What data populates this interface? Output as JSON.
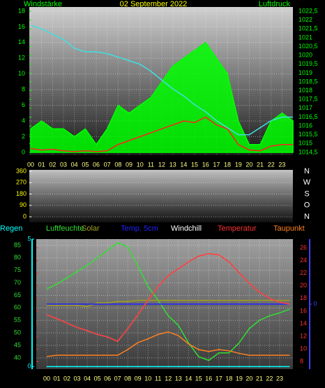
{
  "chart_data": [
    {
      "type": "line",
      "title": "02 September 2022",
      "ylabel": "Windstärke",
      "y2label": "Luftdruck",
      "x": [
        0,
        1,
        2,
        3,
        4,
        5,
        6,
        7,
        8,
        9,
        10,
        11,
        12,
        13,
        14,
        15,
        16,
        17,
        18,
        19,
        20,
        21,
        22,
        23,
        24
      ],
      "xticks": [
        {
          "value": 0,
          "label": "00"
        },
        {
          "value": 1,
          "label": "01"
        },
        {
          "value": 2,
          "label": "02"
        },
        {
          "value": 3,
          "label": "03"
        },
        {
          "value": 4,
          "label": "04"
        },
        {
          "value": 5,
          "label": "05"
        },
        {
          "value": 6,
          "label": "06"
        },
        {
          "value": 7,
          "label": "07"
        },
        {
          "value": 8,
          "label": "08"
        },
        {
          "value": 9,
          "label": "09"
        },
        {
          "value": 10,
          "label": "10"
        },
        {
          "value": 11,
          "label": "11"
        },
        {
          "value": 12,
          "label": "12"
        },
        {
          "value": 13,
          "label": "13"
        },
        {
          "value": 14,
          "label": "14"
        },
        {
          "value": 15,
          "label": "15"
        },
        {
          "value": 16,
          "label": "16"
        },
        {
          "value": 17,
          "label": "17"
        },
        {
          "value": 18,
          "label": "18"
        },
        {
          "value": 19,
          "label": "19"
        },
        {
          "value": 20,
          "label": "20"
        },
        {
          "value": 21,
          "label": "21"
        },
        {
          "value": 22,
          "label": "22"
        },
        {
          "value": 23,
          "label": "23"
        }
      ],
      "ylim": [
        -0.36,
        18.53
      ],
      "yticks": [
        0,
        2,
        4,
        6,
        8,
        10,
        12,
        14,
        16,
        18
      ],
      "y2lim": [
        1014.34,
        1022.74
      ],
      "y2ticks": [
        {
          "value": 1014.5,
          "label": "1014,5"
        },
        1015,
        {
          "value": 1015.5,
          "label": "1015,5"
        },
        1016,
        {
          "value": 1016.5,
          "label": "1016,5"
        },
        1017,
        {
          "value": 1017.5,
          "label": "1017,5"
        },
        1018,
        {
          "value": 1018.5,
          "label": "1018,5"
        },
        1019,
        {
          "value": 1019.5,
          "label": "1019,5"
        },
        1020,
        {
          "value": 1020.5,
          "label": "1020,5"
        },
        1021,
        {
          "value": 1021.5,
          "label": "1021,5"
        },
        1022,
        {
          "value": 1022.5,
          "label": "1022,5"
        }
      ],
      "grid": true,
      "series": [
        {
          "color": "#00ff00",
          "fill": true,
          "values": [
            3,
            4,
            3,
            3,
            2,
            3,
            1,
            3,
            6,
            5,
            6,
            7,
            9,
            11,
            12,
            13,
            14,
            12,
            10,
            4,
            1,
            1,
            4,
            5,
            4
          ]
        },
        {
          "color": "#ff2020",
          "values": [
            0.5,
            0.3,
            0.4,
            0.2,
            0.1,
            0.2,
            0.1,
            0.2,
            1,
            1.5,
            2,
            2.5,
            3,
            3.5,
            4,
            3.8,
            4.5,
            3.5,
            3,
            1,
            0.3,
            0.2,
            0.8,
            1,
            1
          ]
        },
        {
          "color": "#40e0e0",
          "axis": "y2",
          "values": [
            1021.7,
            1021.5,
            1021.2,
            1020.9,
            1020.4,
            1020.2,
            1020.2,
            1020.1,
            1019.9,
            1019.7,
            1019.5,
            1019.1,
            1018.6,
            1018.1,
            1017.7,
            1017.2,
            1016.8,
            1016.3,
            1015.9,
            1015.5,
            1015.5,
            1015.9,
            1016.3,
            1016.5,
            1016.5
          ]
        }
      ]
    },
    {
      "type": "line",
      "ylim": [
        -44,
        371
      ],
      "yticks": [
        0,
        90,
        180,
        270,
        360
      ],
      "y2lim": [
        -44,
        371
      ],
      "y2ticks": [
        {
          "value": 360,
          "label": "N"
        },
        {
          "value": 270,
          "label": "W"
        },
        {
          "value": 180,
          "label": "S"
        },
        {
          "value": 90,
          "label": "O"
        },
        {
          "value": 0,
          "label": "N"
        }
      ],
      "grid": true,
      "series": []
    },
    {
      "type": "line",
      "x": [
        0,
        1,
        2,
        3,
        4,
        5,
        6,
        7,
        8,
        9,
        10,
        11,
        12,
        13,
        14,
        15,
        16,
        17,
        18,
        19,
        20,
        21,
        22,
        23,
        24
      ],
      "xticks": [
        {
          "value": 0,
          "label": "00"
        },
        {
          "value": 1,
          "label": "01"
        },
        {
          "value": 2,
          "label": "02"
        },
        {
          "value": 3,
          "label": "03"
        },
        {
          "value": 4,
          "label": "04"
        },
        {
          "value": 5,
          "label": "05"
        },
        {
          "value": 6,
          "label": "06"
        },
        {
          "value": 7,
          "label": "07"
        },
        {
          "value": 8,
          "label": "08"
        },
        {
          "value": 9,
          "label": "09"
        },
        {
          "value": 10,
          "label": "10"
        },
        {
          "value": 11,
          "label": "11"
        },
        {
          "value": 12,
          "label": "12"
        },
        {
          "value": 13,
          "label": "13"
        },
        {
          "value": 14,
          "label": "14"
        },
        {
          "value": 15,
          "label": "15"
        },
        {
          "value": 16,
          "label": "16"
        },
        {
          "value": 17,
          "label": "17"
        },
        {
          "value": 18,
          "label": "18"
        },
        {
          "value": 19,
          "label": "19"
        },
        {
          "value": 20,
          "label": "20"
        },
        {
          "value": 21,
          "label": "21"
        },
        {
          "value": 22,
          "label": "22"
        },
        {
          "value": 23,
          "label": "23"
        }
      ],
      "ylim": [
        35.5,
        87.5
      ],
      "yticks": [
        40,
        45,
        50,
        55,
        60,
        65,
        70,
        75,
        80,
        85
      ],
      "y2lim": [
        6.8,
        27.4
      ],
      "y2ticks": [
        8,
        10,
        12,
        14,
        16,
        18,
        20,
        22,
        24,
        26
      ],
      "y3lim": [
        -1,
        1
      ],
      "y3ticks": [
        0
      ],
      "y4lim": [
        -0.1,
        5
      ],
      "y4ticks": [
        0,
        5
      ],
      "grid": true,
      "series": [
        {
          "name": "Regen",
          "color": "#00ffff",
          "axis": "y4",
          "values": [
            0,
            0,
            0,
            0,
            0,
            0,
            0,
            0,
            0,
            0,
            0,
            0,
            0,
            0,
            0,
            0,
            0,
            0,
            0,
            0,
            0,
            0,
            0,
            0,
            0
          ]
        },
        {
          "name": "Luftfeuchte",
          "color": "#30e030",
          "values": [
            67.6,
            69.5,
            72,
            74.5,
            77,
            80,
            83,
            86,
            84.4,
            76.9,
            68.5,
            63,
            56.8,
            53,
            46,
            40.5,
            39,
            42,
            42,
            46,
            51.7,
            55,
            56.8,
            58,
            59.5
          ]
        },
        {
          "name": "Solar",
          "color": "#a0a020",
          "values": [
            61,
            61,
            61,
            61,
            60.5,
            62,
            62,
            62.5,
            62.5,
            63,
            63,
            63,
            63,
            63,
            63,
            63,
            63,
            63,
            63,
            63,
            63,
            63,
            63,
            63,
            63
          ]
        },
        {
          "name": "Temp. 5cm",
          "color": "#2020ff",
          "axis": "y3",
          "values": [
            0,
            0,
            0,
            0,
            0,
            0,
            0,
            0,
            0,
            0,
            0,
            0,
            0,
            0,
            0,
            0,
            0,
            0,
            0,
            0,
            0,
            0,
            0,
            0,
            0
          ]
        },
        {
          "name": "Windchill",
          "color": "#ffffff",
          "axis": "y2",
          "values": [
            15.4,
            14.8,
            14.1,
            13.4,
            12.9,
            12.3,
            11.9,
            11.2,
            13.2,
            15.4,
            17.7,
            19.9,
            21.6,
            22.7,
            23.8,
            24.7,
            25.1,
            24.9,
            23.8,
            22.1,
            20.4,
            19,
            18,
            17.4,
            17.1
          ]
        },
        {
          "name": "Temperatur",
          "color": "#ff3030",
          "axis": "y2",
          "values": [
            15.4,
            14.8,
            14.1,
            13.4,
            12.9,
            12.3,
            11.9,
            11.2,
            13.2,
            15.4,
            17.7,
            19.9,
            21.6,
            22.7,
            23.8,
            24.7,
            25.1,
            24.9,
            23.8,
            22.1,
            20.4,
            19,
            18,
            17.4,
            17.1
          ]
        },
        {
          "name": "Taupunkt",
          "color": "#ff8020",
          "axis": "y2",
          "values": [
            8.8,
            9,
            9,
            9,
            9,
            9,
            9,
            9,
            9.9,
            11,
            11.6,
            12.3,
            12.7,
            12.1,
            10.8,
            9.9,
            9.6,
            9.9,
            9.7,
            9.3,
            9,
            9,
            9,
            9,
            9
          ]
        }
      ]
    }
  ]
}
